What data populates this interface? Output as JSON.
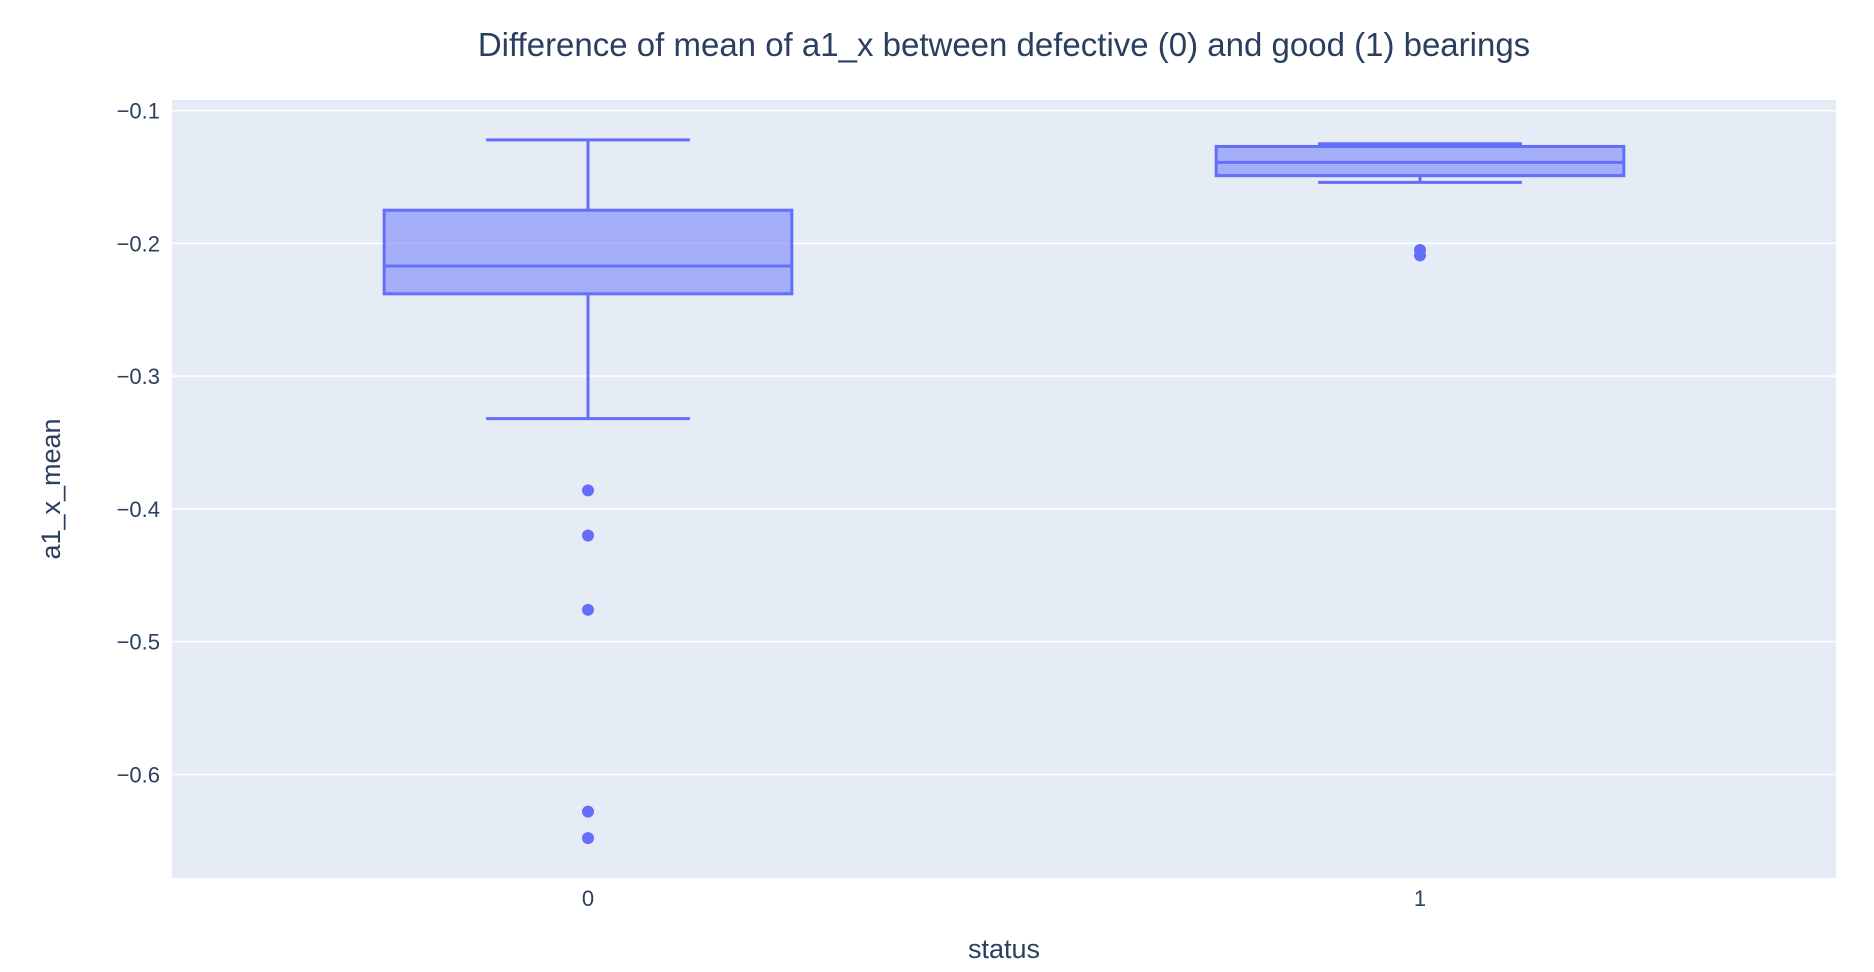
{
  "chart_data": {
    "type": "box",
    "title": "Difference of mean of a1_x between defective (0) and good (1) bearings",
    "xlabel": "status",
    "ylabel": "a1_x_mean",
    "categories": [
      "0",
      "1"
    ],
    "ylim": [
      -0.678,
      -0.092
    ],
    "yticks": [
      -0.1,
      -0.2,
      -0.3,
      -0.4,
      -0.5,
      -0.6
    ],
    "ytick_labels": [
      "−0.1",
      "−0.2",
      "−0.3",
      "−0.4",
      "−0.5",
      "−0.6"
    ],
    "grid": true,
    "legend": "none",
    "boxes": [
      {
        "category": "0",
        "whisker_low": -0.332,
        "q1": -0.238,
        "median": -0.217,
        "q3": -0.175,
        "whisker_high": -0.122,
        "outliers": [
          -0.386,
          -0.42,
          -0.476,
          -0.628,
          -0.648
        ]
      },
      {
        "category": "1",
        "whisker_low": -0.154,
        "q1": -0.149,
        "median": -0.139,
        "q3": -0.127,
        "whisker_high": -0.125,
        "outliers": [
          -0.205,
          -0.209
        ]
      }
    ],
    "colors": {
      "box_line": "#636efa",
      "box_fill": "rgba(99,110,250,0.5)",
      "plot_bg": "#e5ecf6",
      "grid": "#ffffff",
      "text": "#2a3f5f"
    }
  }
}
